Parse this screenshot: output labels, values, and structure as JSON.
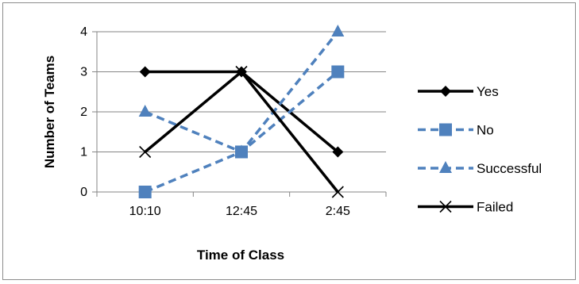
{
  "chart_data": {
    "type": "line",
    "categories": [
      "10:10",
      "12:45",
      "2:45"
    ],
    "xlabel": "Time of Class",
    "ylabel": "Number of Teams",
    "ylim": [
      0,
      4
    ],
    "yticks": [
      "0",
      "1",
      "2",
      "3",
      "4"
    ],
    "grid": true,
    "legend_position": "right",
    "series": [
      {
        "name": "Yes",
        "values": [
          3,
          3,
          1
        ],
        "color": "#000000",
        "dash": "solid",
        "marker": "diamond"
      },
      {
        "name": "No",
        "values": [
          0,
          1,
          3
        ],
        "color": "#4f81bd",
        "dash": "dashed",
        "marker": "square"
      },
      {
        "name": "Successful",
        "values": [
          2,
          1,
          4
        ],
        "color": "#4f81bd",
        "dash": "dashed",
        "marker": "triangle"
      },
      {
        "name": "Failed",
        "values": [
          1,
          3,
          0
        ],
        "color": "#000000",
        "dash": "solid",
        "marker": "x"
      }
    ]
  }
}
